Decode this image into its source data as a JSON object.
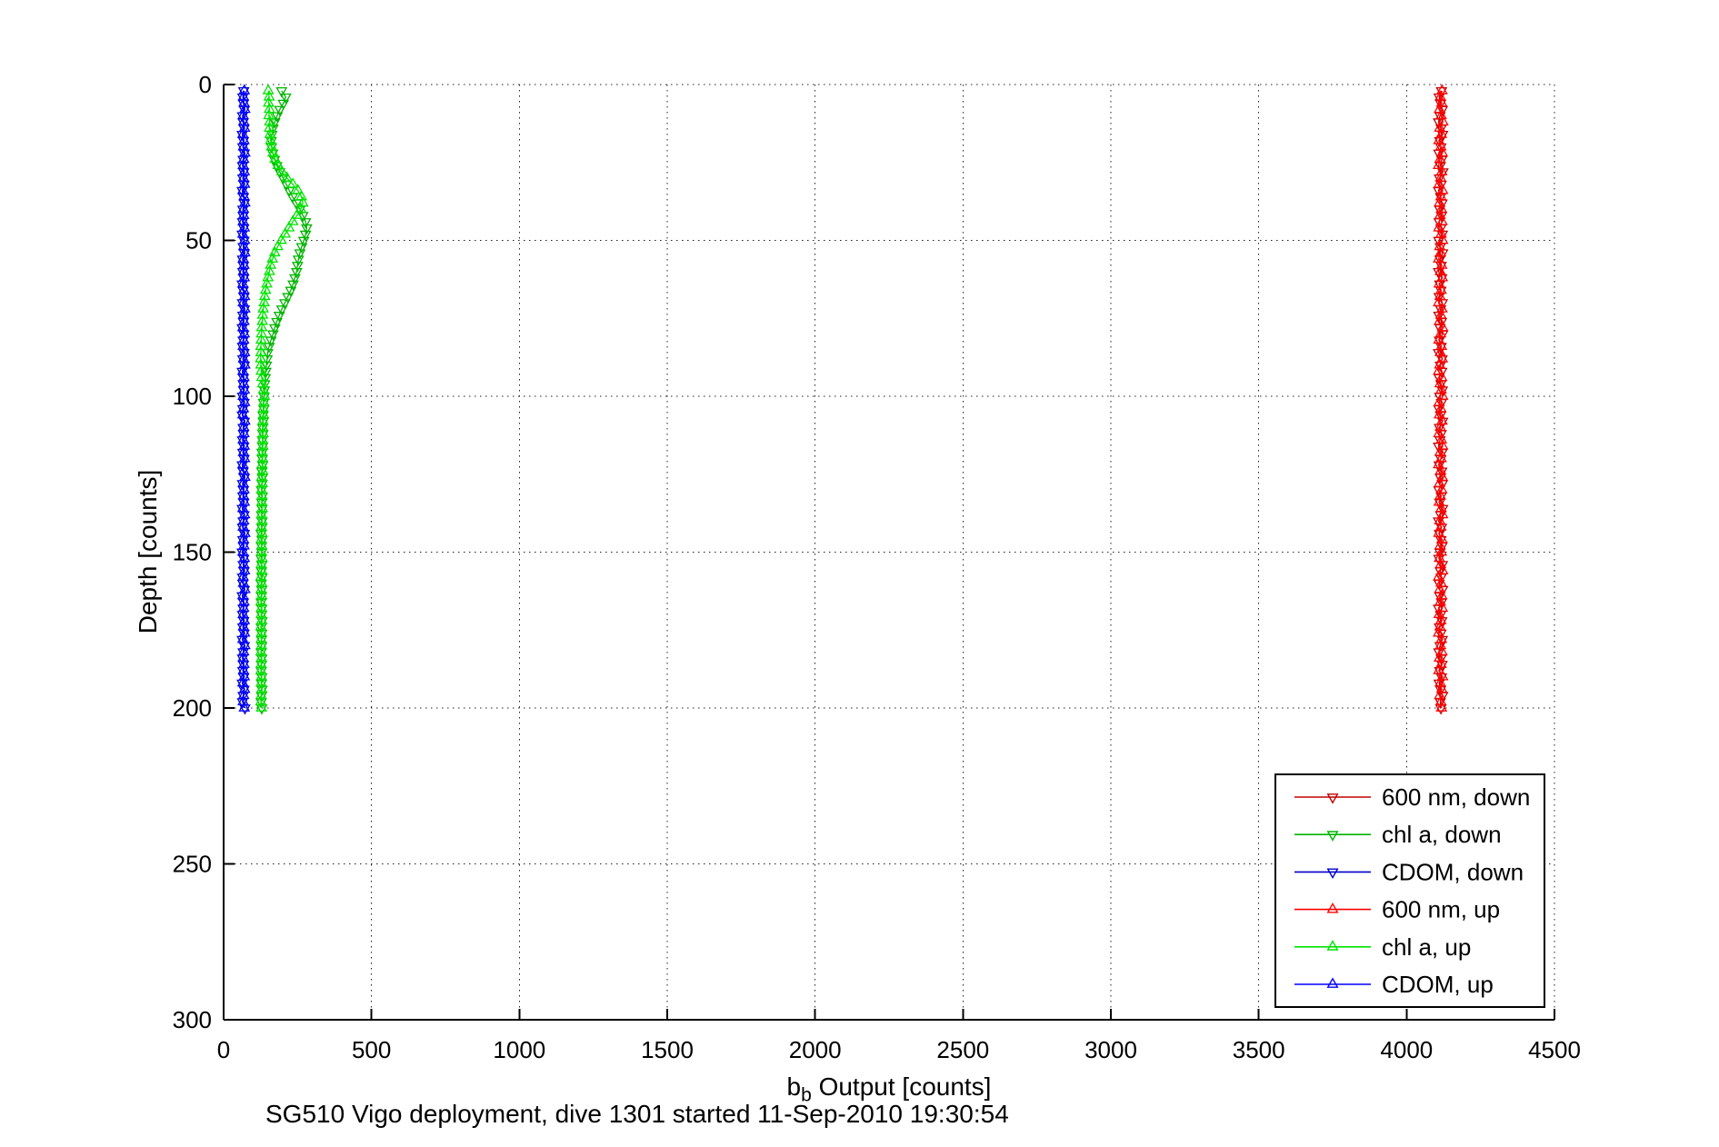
{
  "figure": {
    "title_bottom": "SG510 Vigo deployment, dive 1301 started 11-Sep-2010 19:30:54",
    "background": "#ffffff"
  },
  "chart_data": {
    "type": "line",
    "subtype": "depth-profile scatter-line with triangle markers",
    "title": "",
    "xlabel": {
      "base": "b",
      "sub": "b",
      "rest": " Output [counts]"
    },
    "ylabel": "Depth [counts]",
    "x_axis": {
      "min": 0,
      "max": 4500,
      "ticks": [
        0,
        500,
        1000,
        1500,
        2000,
        2500,
        3000,
        3500,
        4000,
        4500
      ]
    },
    "y_axis": {
      "min": 0,
      "max": 300,
      "ticks": [
        0,
        50,
        100,
        150,
        200,
        250,
        300
      ],
      "inverted": true
    },
    "grid": "dotted",
    "legend_position": "lower-right",
    "depths": [
      2,
      4,
      6,
      8,
      10,
      12,
      14,
      16,
      18,
      20,
      22,
      24,
      26,
      28,
      30,
      32,
      34,
      36,
      38,
      40,
      42,
      44,
      46,
      48,
      50,
      52,
      54,
      56,
      58,
      60,
      62,
      64,
      66,
      68,
      70,
      72,
      74,
      76,
      78,
      80,
      82,
      84,
      86,
      88,
      90,
      92,
      94,
      96,
      98,
      100,
      102,
      104,
      106,
      108,
      110,
      112,
      114,
      116,
      118,
      120,
      122,
      124,
      126,
      128,
      130,
      132,
      134,
      136,
      138,
      140,
      142,
      144,
      146,
      148,
      150,
      152,
      154,
      156,
      158,
      160,
      162,
      164,
      166,
      168,
      170,
      172,
      174,
      176,
      178,
      180,
      182,
      184,
      186,
      188,
      190,
      192,
      194,
      196,
      198,
      200
    ],
    "series": [
      {
        "name": "600 nm, down",
        "color": "#c00000",
        "marker": "triangle-down",
        "values": [
          4118,
          4110,
          4115,
          4121,
          4113,
          4108,
          4117,
          4122,
          4112,
          4116,
          4109,
          4119,
          4114,
          4123,
          4111,
          4117,
          4108,
          4115,
          4120,
          4112,
          4118,
          4110,
          4116,
          4121,
          4109,
          4114,
          4122,
          4113,
          4117,
          4108,
          4119,
          4112,
          4116,
          4110,
          4121,
          4115,
          4109,
          4118,
          4113,
          4122,
          4111,
          4117,
          4108,
          4120,
          4114,
          4119,
          4110,
          4116,
          4121,
          4112,
          4118,
          4109,
          4115,
          4122,
          4111,
          4117,
          4113,
          4108,
          4120,
          4116,
          4110,
          4119,
          4114,
          4121,
          4109,
          4117,
          4112,
          4122,
          4115,
          4108,
          4118,
          4111,
          4116,
          4120,
          4113,
          4109,
          4121,
          4114,
          4117,
          4110,
          4122,
          4112,
          4118,
          4108,
          4115,
          4119,
          4111,
          4116,
          4121,
          4113,
          4109,
          4117,
          4120,
          4112,
          4118,
          4110,
          4115,
          4122,
          4114,
          4116
        ]
      },
      {
        "name": "chl a, down",
        "color": "#00b400",
        "marker": "triangle-down",
        "values": [
          196,
          210,
          202,
          190,
          181,
          173,
          167,
          163,
          161,
          162,
          166,
          172,
          180,
          190,
          201,
          212,
          222,
          233,
          246,
          258,
          268,
          277,
          281,
          277,
          271,
          264,
          258,
          253,
          250,
          247,
          241,
          235,
          227,
          217,
          207,
          197,
          188,
          180,
          173,
          167,
          160,
          154,
          149,
          147,
          145,
          143,
          141,
          139,
          138,
          137,
          135,
          136,
          133,
          134,
          132,
          133,
          131,
          132,
          130,
          131,
          132,
          129,
          131,
          130,
          128,
          131,
          129,
          130,
          128,
          130,
          129,
          127,
          130,
          128,
          129,
          127,
          129,
          128,
          130,
          127,
          129,
          128,
          127,
          129,
          128,
          130,
          127,
          129,
          128,
          129,
          127,
          129,
          128,
          127,
          129,
          128,
          130,
          128,
          127,
          129
        ]
      },
      {
        "name": "CDOM, down",
        "color": "#0000c8",
        "marker": "triangle-down",
        "values": [
          68,
          65,
          67,
          70,
          64,
          66,
          69,
          63,
          67,
          65,
          70,
          66,
          64,
          68,
          65,
          69,
          63,
          67,
          70,
          65,
          66,
          64,
          68,
          63,
          69,
          66,
          70,
          64,
          67,
          65,
          68,
          63,
          66,
          69,
          64,
          70,
          65,
          67,
          63,
          68,
          66,
          64,
          69,
          65,
          70,
          63,
          67,
          66,
          68,
          64,
          69,
          65,
          63,
          70,
          66,
          67,
          64,
          68,
          65,
          69,
          63,
          66,
          70,
          64,
          67,
          65,
          68,
          63,
          69,
          66,
          64,
          70,
          65,
          67,
          63,
          68,
          66,
          69,
          64,
          65,
          70,
          63,
          67,
          66,
          64,
          68,
          65,
          69,
          63,
          70,
          66,
          64,
          67,
          65,
          68,
          63,
          69,
          66,
          64,
          72
        ]
      },
      {
        "name": "600 nm, up",
        "color": "#ff0000",
        "marker": "triangle-up",
        "values": [
          4120,
          4114,
          4119,
          4111,
          4117,
          4123,
          4112,
          4118,
          4109,
          4116,
          4121,
          4113,
          4108,
          4119,
          4115,
          4110,
          4122,
          4116,
          4111,
          4118,
          4113,
          4120,
          4109,
          4117,
          4122,
          4112,
          4115,
          4108,
          4119,
          4114,
          4121,
          4110,
          4117,
          4113,
          4108,
          4120,
          4116,
          4111,
          4122,
          4115,
          4109,
          4118,
          4114,
          4121,
          4112,
          4108,
          4119,
          4113,
          4117,
          4122,
          4110,
          4116,
          4111,
          4120,
          4114,
          4109,
          4118,
          4122,
          4113,
          4117,
          4108,
          4115,
          4121,
          4111,
          4119,
          4114,
          4110,
          4117,
          4122,
          4112,
          4116,
          4109,
          4120,
          4113,
          4118,
          4111,
          4115,
          4122,
          4108,
          4117,
          4112,
          4119,
          4114,
          4121,
          4110,
          4116,
          4113,
          4108,
          4118,
          4115,
          4120,
          4111,
          4117,
          4109,
          4122,
          4114,
          4119,
          4112,
          4116,
          4118
        ]
      },
      {
        "name": "chl a, up",
        "color": "#00e400",
        "marker": "triangle-up",
        "values": [
          151,
          154,
          152,
          155,
          153,
          156,
          155,
          157,
          159,
          162,
          167,
          174,
          184,
          197,
          214,
          234,
          251,
          263,
          268,
          261,
          248,
          234,
          221,
          208,
          195,
          183,
          173,
          165,
          159,
          155,
          150,
          146,
          142,
          139,
          137,
          134,
          132,
          131,
          129,
          128,
          127,
          126,
          126,
          125,
          126,
          127,
          129,
          132,
          135,
          138,
          136,
          134,
          135,
          133,
          132,
          134,
          131,
          133,
          130,
          132,
          130,
          132,
          129,
          131,
          128,
          130,
          129,
          131,
          128,
          130,
          128,
          130,
          127,
          129,
          128,
          130,
          127,
          129,
          126,
          129,
          127,
          129,
          126,
          128,
          127,
          129,
          126,
          128,
          127,
          128,
          126,
          128,
          127,
          126,
          128,
          127,
          129,
          127,
          126,
          128
        ]
      },
      {
        "name": "CDOM, up",
        "color": "#0000ff",
        "marker": "triangle-up",
        "values": [
          70,
          67,
          69,
          72,
          66,
          68,
          71,
          65,
          69,
          67,
          72,
          68,
          66,
          70,
          67,
          71,
          65,
          69,
          72,
          67,
          68,
          66,
          70,
          65,
          71,
          68,
          72,
          66,
          69,
          67,
          70,
          65,
          68,
          71,
          66,
          72,
          67,
          69,
          65,
          70,
          68,
          66,
          71,
          67,
          72,
          65,
          69,
          68,
          70,
          66,
          71,
          67,
          65,
          72,
          68,
          69,
          66,
          70,
          67,
          71,
          65,
          68,
          72,
          66,
          69,
          67,
          70,
          65,
          71,
          68,
          66,
          72,
          67,
          69,
          65,
          70,
          68,
          71,
          66,
          67,
          72,
          65,
          69,
          68,
          66,
          70,
          67,
          71,
          65,
          72,
          68,
          66,
          69,
          67,
          70,
          65,
          71,
          68,
          66,
          70
        ]
      }
    ]
  }
}
